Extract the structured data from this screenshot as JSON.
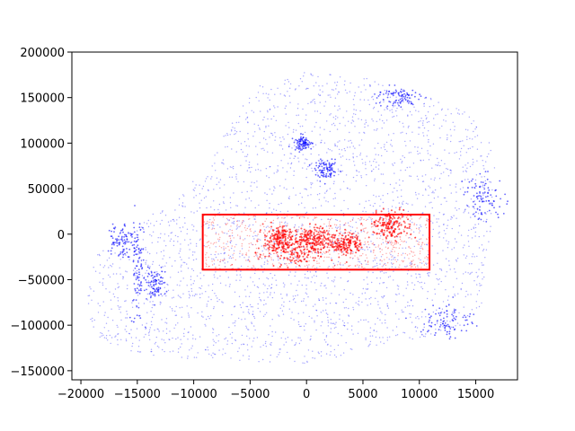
{
  "chart_data": {
    "type": "scatter",
    "title": "",
    "xlabel": "",
    "ylabel": "",
    "xlim": [
      -20800,
      18700
    ],
    "ylim": [
      -160000,
      200000
    ],
    "xticks": [
      -20000,
      -15000,
      -10000,
      -5000,
      0,
      5000,
      10000,
      15000
    ],
    "xtick_labels": [
      "−20000",
      "−15000",
      "−10000",
      "−5000",
      "0",
      "5000",
      "10000",
      "15000"
    ],
    "yticks": [
      -150000,
      -100000,
      -50000,
      0,
      50000,
      100000,
      150000,
      200000
    ],
    "ytick_labels": [
      "−150000",
      "−100000",
      "−50000",
      "0",
      "50000",
      "100000",
      "150000",
      "200000"
    ],
    "grid": false,
    "legend": "none",
    "series": [
      {
        "color": "#0000ff",
        "marker": "small points",
        "description_region_outline": [
          [
            -19500,
            -60000
          ],
          [
            -18500,
            -20000
          ],
          [
            -16000,
            10000
          ],
          [
            -12000,
            30000
          ],
          [
            -10000,
            60000
          ],
          [
            -8000,
            90000
          ],
          [
            -6500,
            130000
          ],
          [
            -4000,
            165000
          ],
          [
            0,
            178000
          ],
          [
            5000,
            172000
          ],
          [
            10000,
            155000
          ],
          [
            14000,
            135000
          ],
          [
            16000,
            110000
          ],
          [
            17000,
            70000
          ],
          [
            16500,
            20000
          ],
          [
            16000,
            -30000
          ],
          [
            15500,
            -80000
          ],
          [
            13000,
            -110000
          ],
          [
            8000,
            -120000
          ],
          [
            4000,
            -132000
          ],
          [
            0,
            -142000
          ],
          [
            -5000,
            -140000
          ],
          [
            -10000,
            -138000
          ],
          [
            -15000,
            -132000
          ],
          [
            -18500,
            -115000
          ],
          [
            -19500,
            -90000
          ]
        ],
        "clusters": [
          {
            "x": -15000,
            "y": -40000,
            "spread_x": 300,
            "spread_y": 30000
          },
          {
            "x": 15800,
            "y": 40000,
            "spread_x": 900,
            "spread_y": 12000
          },
          {
            "x": 12500,
            "y": -95000,
            "spread_x": 1200,
            "spread_y": 10000
          },
          {
            "x": 1800,
            "y": 70000,
            "spread_x": 500,
            "spread_y": 5000
          },
          {
            "x": -300,
            "y": 100000,
            "spread_x": 400,
            "spread_y": 4000
          },
          {
            "x": -13500,
            "y": -55000,
            "spread_x": 500,
            "spread_y": 8000
          },
          {
            "x": -16500,
            "y": -5000,
            "spread_x": 600,
            "spread_y": 10000
          },
          {
            "x": 8000,
            "y": 150000,
            "spread_x": 1000,
            "spread_y": 6000
          }
        ]
      },
      {
        "color": "#ff0000",
        "marker": "small points",
        "region": {
          "x": [
            -9200,
            10900
          ],
          "y": [
            -38000,
            22000
          ]
        },
        "clusters": [
          {
            "x": -2400,
            "y": -5000,
            "spread_x": 700,
            "spread_y": 7000
          },
          {
            "x": 500,
            "y": -4000,
            "spread_x": 800,
            "spread_y": 6000
          },
          {
            "x": 3500,
            "y": -10000,
            "spread_x": 700,
            "spread_y": 6000
          },
          {
            "x": 7500,
            "y": 10000,
            "spread_x": 900,
            "spread_y": 8000
          },
          {
            "x": -1000,
            "y": -20000,
            "spread_x": 1500,
            "spread_y": 8000
          }
        ]
      }
    ],
    "annotations": [
      {
        "type": "rectangle",
        "color": "#ff0000",
        "x": [
          -9200,
          10900
        ],
        "y": [
          -39000,
          21500
        ]
      }
    ]
  }
}
